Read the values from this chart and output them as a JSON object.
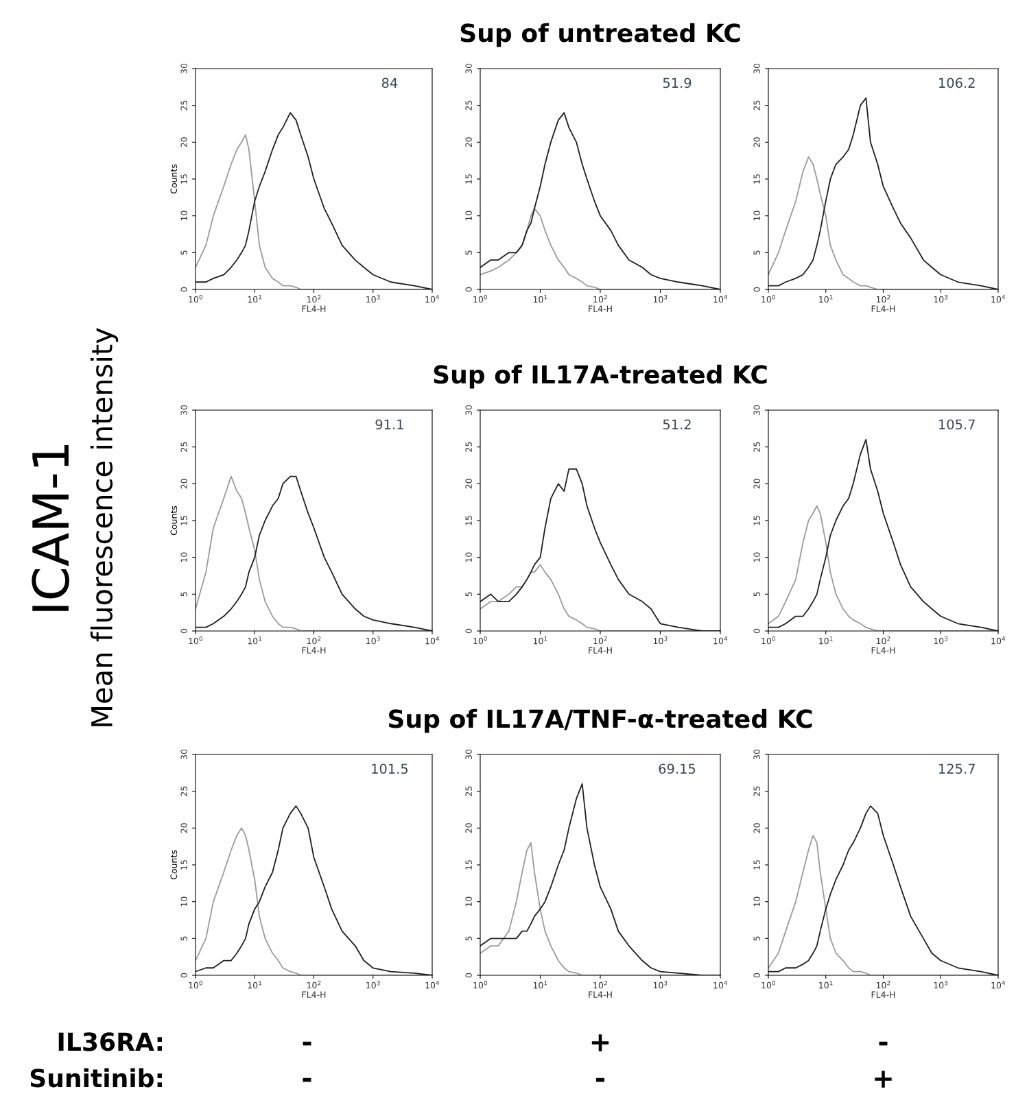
{
  "chart_data": [
    {
      "type": "line",
      "ylabel": "Counts",
      "xlabel": "FL4-H",
      "log": "x",
      "xlim": [
        1,
        10000
      ],
      "ylim": [
        0,
        30
      ],
      "xticks": [
        {
          "value": 1,
          "label": "10$^{0}$"
        },
        {
          "value": 10,
          "label": "10$^{1}$"
        },
        {
          "value": 100,
          "label": "10$^{2}$"
        },
        {
          "value": 1000,
          "label": "10$^{3}$"
        },
        {
          "value": 10000,
          "label": "10$^{4}$"
        }
      ],
      "yticks": [
        0,
        5,
        10,
        15,
        20,
        25,
        30
      ],
      "annotations": [
        "84"
      ],
      "x": [
        1,
        1.5,
        2,
        3,
        4,
        5,
        6,
        7,
        8,
        10,
        12,
        15,
        20,
        25,
        30,
        40,
        50,
        60,
        80,
        100,
        150,
        200,
        300,
        500,
        700,
        1000,
        2000,
        5000,
        10000
      ],
      "series": [
        {
          "color": "#9a9a9a",
          "values": [
            3,
            6,
            10,
            14,
            17,
            19,
            20,
            21,
            19,
            12,
            6,
            3,
            1.5,
            1,
            0.5,
            0.5,
            0.3,
            0,
            0,
            0,
            0,
            0,
            0,
            0,
            0,
            0,
            0,
            0,
            0
          ]
        },
        {
          "color": "#1e1e1e",
          "values": [
            1,
            1,
            1.5,
            2,
            3,
            4,
            5,
            6,
            8,
            12,
            14,
            16,
            19,
            21,
            22,
            24,
            23,
            21,
            18,
            15,
            11,
            9,
            6,
            4,
            3,
            2,
            1,
            0.5,
            0
          ]
        }
      ]
    },
    {
      "type": "line",
      "title": "Sup of untreated KC",
      "xlabel": "FL4-H",
      "log": "x",
      "xlim": [
        1,
        10000
      ],
      "ylim": [
        0,
        30
      ],
      "xticks": [
        {
          "value": 1,
          "label": "10$^{0}$"
        },
        {
          "value": 10,
          "label": "10$^{1}$"
        },
        {
          "value": 100,
          "label": "10$^{2}$"
        },
        {
          "value": 1000,
          "label": "10$^{3}$"
        },
        {
          "value": 10000,
          "label": "10$^{4}$"
        }
      ],
      "yticks": [
        0,
        5,
        10,
        15,
        20,
        25,
        30
      ],
      "annotations": [
        "51.9"
      ],
      "x": [
        1,
        1.5,
        2,
        3,
        4,
        5,
        6,
        7,
        8,
        10,
        12,
        15,
        20,
        25,
        30,
        40,
        50,
        60,
        80,
        100,
        150,
        200,
        300,
        500,
        700,
        1000,
        2000,
        5000,
        10000
      ],
      "series": [
        {
          "color": "#9a9a9a",
          "values": [
            2,
            2.5,
            3,
            4,
            5,
            6,
            8,
            10,
            11,
            10,
            8,
            6,
            4,
            3,
            2,
            1.5,
            1,
            0.5,
            0.3,
            0,
            0,
            0,
            0,
            0,
            0,
            0,
            0,
            0,
            0
          ]
        },
        {
          "color": "#1e1e1e",
          "values": [
            3,
            4,
            4,
            5,
            5,
            6,
            8,
            9,
            11,
            14,
            17,
            20,
            23,
            24,
            22,
            20,
            17,
            15,
            12,
            10,
            8,
            6,
            4,
            3,
            2,
            1.5,
            1,
            0.5,
            0
          ]
        }
      ]
    },
    {
      "type": "line",
      "xlabel": "FL4-H",
      "log": "x",
      "xlim": [
        1,
        10000
      ],
      "ylim": [
        0,
        30
      ],
      "xticks": [
        {
          "value": 1,
          "label": "10$^{0}$"
        },
        {
          "value": 10,
          "label": "10$^{1}$"
        },
        {
          "value": 100,
          "label": "10$^{2}$"
        },
        {
          "value": 1000,
          "label": "10$^{3}$"
        },
        {
          "value": 10000,
          "label": "10$^{4}$"
        }
      ],
      "yticks": [
        0,
        5,
        10,
        15,
        20,
        25,
        30
      ],
      "annotations": [
        "106.2"
      ],
      "x": [
        1,
        1.5,
        2,
        3,
        4,
        5,
        6,
        7,
        8,
        10,
        12,
        15,
        20,
        25,
        30,
        40,
        50,
        60,
        80,
        100,
        150,
        200,
        300,
        500,
        700,
        1000,
        2000,
        5000,
        10000
      ],
      "series": [
        {
          "color": "#9a9a9a",
          "values": [
            2,
            5,
            8,
            12,
            16,
            18,
            17,
            15,
            13,
            10,
            6,
            4,
            2,
            1.5,
            1,
            0.5,
            0.5,
            0.3,
            0,
            0,
            0,
            0,
            0,
            0,
            0,
            0,
            0,
            0,
            0
          ]
        },
        {
          "color": "#1e1e1e",
          "values": [
            0.5,
            0.5,
            1,
            1.5,
            2,
            3,
            4,
            6,
            8,
            12,
            15,
            17,
            18,
            19,
            21,
            25,
            26,
            20,
            17,
            14,
            11,
            9,
            7,
            4,
            3,
            2,
            1,
            0.5,
            0
          ]
        }
      ]
    },
    {
      "type": "line",
      "ylabel": "Counts",
      "xlabel": "FL4-H",
      "log": "x",
      "xlim": [
        1,
        10000
      ],
      "ylim": [
        0,
        30
      ],
      "xticks": [
        {
          "value": 1,
          "label": "10$^{0}$"
        },
        {
          "value": 10,
          "label": "10$^{1}$"
        },
        {
          "value": 100,
          "label": "10$^{2}$"
        },
        {
          "value": 1000,
          "label": "10$^{3}$"
        },
        {
          "value": 10000,
          "label": "10$^{4}$"
        }
      ],
      "yticks": [
        0,
        5,
        10,
        15,
        20,
        25,
        30
      ],
      "annotations": [
        "91.1"
      ],
      "x": [
        1,
        1.5,
        2,
        3,
        4,
        5,
        6,
        7,
        8,
        10,
        12,
        15,
        20,
        25,
        30,
        40,
        50,
        60,
        80,
        100,
        150,
        200,
        300,
        500,
        700,
        1000,
        2000,
        5000,
        10000
      ],
      "series": [
        {
          "color": "#9a9a9a",
          "values": [
            3,
            8,
            14,
            18,
            21,
            19,
            18,
            16,
            14,
            11,
            7,
            4,
            2,
            1,
            0.5,
            0.5,
            0.3,
            0,
            0,
            0,
            0,
            0,
            0,
            0,
            0,
            0,
            0,
            0,
            0
          ]
        },
        {
          "color": "#1e1e1e",
          "values": [
            0.5,
            0.5,
            1,
            2,
            3,
            4,
            5,
            6,
            8,
            10,
            13,
            15,
            17,
            18,
            20,
            21,
            21,
            19,
            16,
            14,
            10,
            8,
            5,
            3,
            2,
            1.5,
            1,
            0.5,
            0
          ]
        }
      ]
    },
    {
      "type": "line",
      "title": "Sup of IL17A-treated KC",
      "xlabel": "FL4-H",
      "log": "x",
      "xlim": [
        1,
        10000
      ],
      "ylim": [
        0,
        30
      ],
      "xticks": [
        {
          "value": 1,
          "label": "10$^{0}$"
        },
        {
          "value": 10,
          "label": "10$^{1}$"
        },
        {
          "value": 100,
          "label": "10$^{2}$"
        },
        {
          "value": 1000,
          "label": "10$^{3}$"
        },
        {
          "value": 10000,
          "label": "10$^{4}$"
        }
      ],
      "yticks": [
        0,
        5,
        10,
        15,
        20,
        25,
        30
      ],
      "annotations": [
        "51.2"
      ],
      "x": [
        1,
        1.5,
        2,
        3,
        4,
        5,
        6,
        7,
        8,
        10,
        12,
        15,
        20,
        25,
        30,
        40,
        50,
        60,
        80,
        100,
        150,
        200,
        300,
        500,
        700,
        1000,
        2000,
        5000,
        10000
      ],
      "series": [
        {
          "color": "#9a9a9a",
          "values": [
            3,
            4,
            4,
            5,
            6,
            6,
            7,
            8,
            8,
            9,
            8,
            7,
            5,
            3,
            2,
            1.5,
            1,
            0.5,
            0.3,
            0,
            0,
            0,
            0,
            0,
            0,
            0,
            0,
            0,
            0
          ]
        },
        {
          "color": "#1e1e1e",
          "values": [
            4,
            5,
            4,
            4,
            5,
            6,
            7,
            8,
            9,
            10,
            14,
            18,
            20,
            19,
            22,
            22,
            20,
            17,
            14,
            12,
            9,
            7,
            5,
            4,
            3,
            1,
            0.5,
            0,
            0
          ]
        }
      ]
    },
    {
      "type": "line",
      "xlabel": "FL4-H",
      "log": "x",
      "xlim": [
        1,
        10000
      ],
      "ylim": [
        0,
        30
      ],
      "xticks": [
        {
          "value": 1,
          "label": "10$^{0}$"
        },
        {
          "value": 10,
          "label": "10$^{1}$"
        },
        {
          "value": 100,
          "label": "10$^{2}$"
        },
        {
          "value": 1000,
          "label": "10$^{3}$"
        },
        {
          "value": 10000,
          "label": "10$^{4}$"
        }
      ],
      "yticks": [
        0,
        5,
        10,
        15,
        20,
        25,
        30
      ],
      "annotations": [
        "105.7"
      ],
      "x": [
        1,
        1.5,
        2,
        3,
        4,
        5,
        6,
        7,
        8,
        10,
        12,
        15,
        20,
        25,
        30,
        40,
        50,
        60,
        80,
        100,
        150,
        200,
        300,
        500,
        700,
        1000,
        2000,
        5000,
        10000
      ],
      "series": [
        {
          "color": "#9a9a9a",
          "values": [
            1,
            2,
            4,
            7,
            12,
            15,
            16,
            17,
            16,
            12,
            8,
            5,
            3,
            2,
            1.5,
            1,
            0.5,
            0.3,
            0,
            0,
            0,
            0,
            0,
            0,
            0,
            0,
            0,
            0,
            0
          ]
        },
        {
          "color": "#1e1e1e",
          "values": [
            0.5,
            0.5,
            1,
            2,
            2,
            3,
            4,
            5,
            7,
            10,
            13,
            15,
            17,
            18,
            20,
            24,
            26,
            22,
            19,
            16,
            12,
            9,
            6,
            4,
            3,
            2,
            1,
            0.5,
            0
          ]
        }
      ]
    },
    {
      "type": "line",
      "ylabel": "Counts",
      "xlabel": "FL4-H",
      "log": "x",
      "xlim": [
        1,
        10000
      ],
      "ylim": [
        0,
        30
      ],
      "xticks": [
        {
          "value": 1,
          "label": "10$^{0}$"
        },
        {
          "value": 10,
          "label": "10$^{1}$"
        },
        {
          "value": 100,
          "label": "10$^{2}$"
        },
        {
          "value": 1000,
          "label": "10$^{3}$"
        },
        {
          "value": 10000,
          "label": "10$^{4}$"
        }
      ],
      "yticks": [
        0,
        5,
        10,
        15,
        20,
        25,
        30
      ],
      "annotations": [
        "101.5"
      ],
      "x": [
        1,
        1.5,
        2,
        3,
        4,
        5,
        6,
        7,
        8,
        10,
        12,
        15,
        20,
        25,
        30,
        40,
        50,
        60,
        80,
        100,
        150,
        200,
        300,
        500,
        700,
        1000,
        2000,
        5000,
        10000
      ],
      "series": [
        {
          "color": "#9a9a9a",
          "values": [
            2,
            5,
            10,
            14,
            17,
            19,
            20,
            19,
            17,
            13,
            8,
            5,
            3,
            2,
            1,
            0.5,
            0.3,
            0,
            0,
            0,
            0,
            0,
            0,
            0,
            0,
            0,
            0,
            0,
            0
          ]
        },
        {
          "color": "#1e1e1e",
          "values": [
            0.5,
            1,
            1,
            2,
            2,
            3,
            4,
            5,
            7,
            9,
            10,
            12,
            14,
            17,
            20,
            22,
            23,
            22,
            20,
            16,
            12,
            9,
            6,
            4,
            2,
            1,
            0.5,
            0.3,
            0
          ]
        }
      ]
    },
    {
      "type": "line",
      "title": "Sup of IL17A/TNF-α-treated KC",
      "xlabel": "FL4-H",
      "log": "x",
      "xlim": [
        1,
        10000
      ],
      "ylim": [
        0,
        30
      ],
      "xticks": [
        {
          "value": 1,
          "label": "10$^{0}$"
        },
        {
          "value": 10,
          "label": "10$^{1}$"
        },
        {
          "value": 100,
          "label": "10$^{2}$"
        },
        {
          "value": 1000,
          "label": "10$^{3}$"
        },
        {
          "value": 10000,
          "label": "10$^{4}$"
        }
      ],
      "yticks": [
        0,
        5,
        10,
        15,
        20,
        25,
        30
      ],
      "annotations": [
        "69.15"
      ],
      "x": [
        1,
        1.5,
        2,
        3,
        4,
        5,
        6,
        7,
        8,
        10,
        12,
        15,
        20,
        25,
        30,
        40,
        50,
        60,
        80,
        100,
        150,
        200,
        300,
        500,
        700,
        1000,
        2000,
        5000,
        10000
      ],
      "series": [
        {
          "color": "#9a9a9a",
          "values": [
            3,
            4,
            4,
            6,
            10,
            14,
            17,
            18,
            14,
            9,
            6,
            4,
            2,
            1,
            0.5,
            0.3,
            0,
            0,
            0,
            0,
            0,
            0,
            0,
            0,
            0,
            0,
            0,
            0,
            0
          ]
        },
        {
          "color": "#1e1e1e",
          "values": [
            4,
            5,
            5,
            5,
            5,
            6,
            6,
            7,
            8,
            9,
            10,
            12,
            15,
            17,
            20,
            24,
            26,
            20,
            15,
            12,
            9,
            6,
            4,
            2,
            1,
            0.5,
            0.3,
            0,
            0
          ]
        }
      ]
    },
    {
      "type": "line",
      "xlabel": "FL4-H",
      "log": "x",
      "xlim": [
        1,
        10000
      ],
      "ylim": [
        0,
        30
      ],
      "xticks": [
        {
          "value": 1,
          "label": "10$^{0}$"
        },
        {
          "value": 10,
          "label": "10$^{1}$"
        },
        {
          "value": 100,
          "label": "10$^{2}$"
        },
        {
          "value": 1000,
          "label": "10$^{3}$"
        },
        {
          "value": 10000,
          "label": "10$^{4}$"
        }
      ],
      "yticks": [
        0,
        5,
        10,
        15,
        20,
        25,
        30
      ],
      "annotations": [
        "125.7"
      ],
      "x": [
        1,
        1.5,
        2,
        3,
        4,
        5,
        6,
        7,
        8,
        10,
        12,
        15,
        20,
        25,
        30,
        40,
        50,
        60,
        80,
        100,
        150,
        200,
        300,
        500,
        700,
        1000,
        2000,
        5000,
        10000
      ],
      "series": [
        {
          "color": "#9a9a9a",
          "values": [
            1,
            3,
            6,
            10,
            14,
            17,
            19,
            18,
            14,
            9,
            5,
            3,
            2,
            1,
            0.5,
            0.5,
            0.3,
            0,
            0,
            0,
            0,
            0,
            0,
            0,
            0,
            0,
            0,
            0,
            0
          ]
        },
        {
          "color": "#1e1e1e",
          "values": [
            0.5,
            0.5,
            1,
            1,
            1.5,
            2,
            3,
            4,
            6,
            9,
            11,
            13,
            15,
            17,
            18,
            20,
            22,
            23,
            22,
            19,
            15,
            12,
            8,
            5,
            3,
            2,
            1,
            0.5,
            0
          ]
        }
      ]
    },
    {
      "type": "other",
      "annotations": [
        "ICAM-1",
        "Mean fluorescence intensity",
        "IL36RA:",
        "-",
        "+",
        "-",
        "Sunitinib:",
        "-",
        "-",
        "+"
      ]
    }
  ]
}
